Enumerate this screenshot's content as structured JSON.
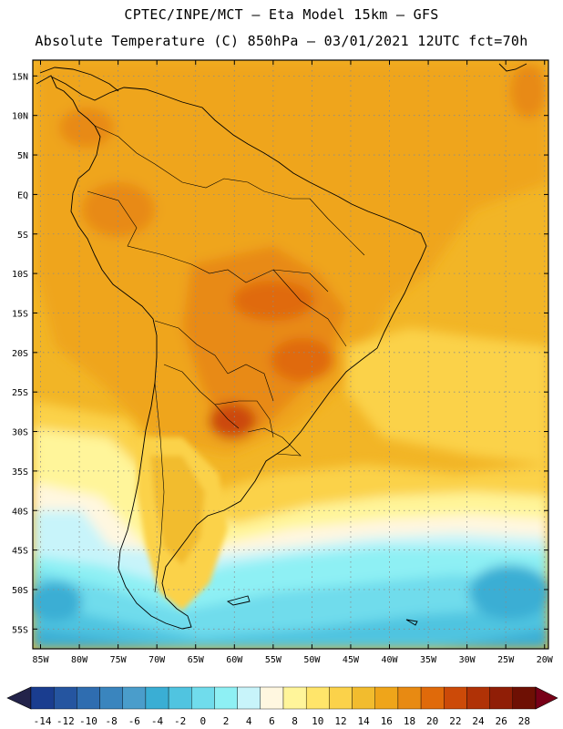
{
  "header": {
    "line1": "CPTEC/INPE/MCT –  Eta Model 15km – GFS",
    "line2": "Absolute Temperature (C) 850hPa – 03/01/2021 12UTC fct=70h"
  },
  "map": {
    "lat_ticks": [
      "15N",
      "10N",
      "5N",
      "EQ",
      "5S",
      "10S",
      "15S",
      "20S",
      "25S",
      "30S",
      "35S",
      "40S",
      "45S",
      "50S",
      "55S"
    ],
    "lat_values": [
      15,
      10,
      5,
      0,
      -5,
      -10,
      -15,
      -20,
      -25,
      -30,
      -35,
      -40,
      -45,
      -50,
      -55
    ],
    "lon_ticks": [
      "85W",
      "80W",
      "75W",
      "70W",
      "65W",
      "60W",
      "55W",
      "50W",
      "45W",
      "40W",
      "35W",
      "30W",
      "25W",
      "20W"
    ],
    "lon_values": [
      -85,
      -80,
      -75,
      -70,
      -65,
      -60,
      -55,
      -50,
      -45,
      -40,
      -35,
      -30,
      -25,
      -20
    ],
    "lat_range": [
      -57.5,
      17
    ],
    "lon_range": [
      -86,
      -19.5
    ]
  },
  "legend": {
    "labels": [
      "-14",
      "-12",
      "-10",
      "-8",
      "-6",
      "-4",
      "-2",
      "0",
      "2",
      "4",
      "6",
      "8",
      "10",
      "12",
      "14",
      "16",
      "18",
      "20",
      "22",
      "24",
      "26",
      "28"
    ],
    "colors": [
      "#1a3d8f",
      "#2555a0",
      "#2f6db0",
      "#3a85be",
      "#4a9dcb",
      "#3aaed4",
      "#50c4e0",
      "#70dcec",
      "#8ef0f4",
      "#c8f4fa",
      "#fff7e0",
      "#fff59a",
      "#ffe56a",
      "#fbd24a",
      "#f2bc2e",
      "#efa51a",
      "#e88a12",
      "#e06a0a",
      "#cc4a08",
      "#b03206",
      "#901e06",
      "#6e1004"
    ],
    "low_arrow_color": "#23234a",
    "high_arrow_color": "#780018"
  }
}
